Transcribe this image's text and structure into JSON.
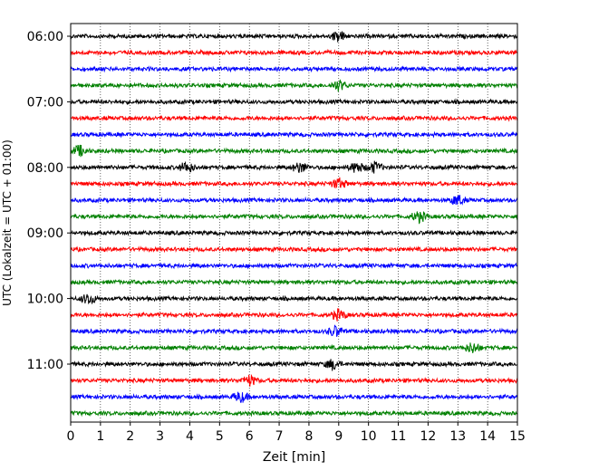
{
  "chart_data": {
    "type": "line",
    "subtype": "helicorder",
    "title": "",
    "xlabel": "Zeit  [min]",
    "ylabel": "UTC (Lokalzeit = UTC + 01:00)",
    "xlim": [
      0,
      15
    ],
    "x_ticks": [
      0,
      1,
      2,
      3,
      4,
      5,
      6,
      7,
      8,
      9,
      10,
      11,
      12,
      13,
      14,
      15
    ],
    "y_tick_labels": [
      "06:00",
      "07:00",
      "08:00",
      "09:00",
      "10:00",
      "11:00"
    ],
    "y_tick_rows": [
      0,
      4,
      8,
      12,
      16,
      20
    ],
    "row_interval_min": 15,
    "grid": "vertical dotted at x ticks",
    "colors": [
      "#000000",
      "#ff0000",
      "#0000ff",
      "#008000"
    ],
    "series": [
      {
        "start": "06:00",
        "events_min": [
          9.0
        ]
      },
      {
        "start": "06:15",
        "events_min": []
      },
      {
        "start": "06:30",
        "events_min": []
      },
      {
        "start": "06:45",
        "events_min": [
          9.0
        ]
      },
      {
        "start": "07:00",
        "events_min": []
      },
      {
        "start": "07:15",
        "events_min": []
      },
      {
        "start": "07:30",
        "events_min": []
      },
      {
        "start": "07:45",
        "events_min": [
          0.3
        ]
      },
      {
        "start": "08:00",
        "events_min": [
          3.9,
          7.7,
          9.6,
          10.2
        ]
      },
      {
        "start": "08:15",
        "events_min": [
          9.0
        ]
      },
      {
        "start": "08:30",
        "events_min": [
          13.0
        ]
      },
      {
        "start": "08:45",
        "events_min": [
          11.7
        ]
      },
      {
        "start": "09:00",
        "events_min": []
      },
      {
        "start": "09:15",
        "events_min": []
      },
      {
        "start": "09:30",
        "events_min": []
      },
      {
        "start": "09:45",
        "events_min": []
      },
      {
        "start": "10:00",
        "events_min": [
          0.6
        ]
      },
      {
        "start": "10:15",
        "events_min": [
          9.0
        ]
      },
      {
        "start": "10:30",
        "events_min": [
          8.9
        ]
      },
      {
        "start": "10:45",
        "events_min": [
          13.5
        ]
      },
      {
        "start": "11:00",
        "events_min": [
          8.8
        ]
      },
      {
        "start": "11:15",
        "events_min": [
          6.0
        ]
      },
      {
        "start": "11:30",
        "events_min": [
          5.7
        ]
      },
      {
        "start": "11:45",
        "events_min": []
      }
    ]
  }
}
